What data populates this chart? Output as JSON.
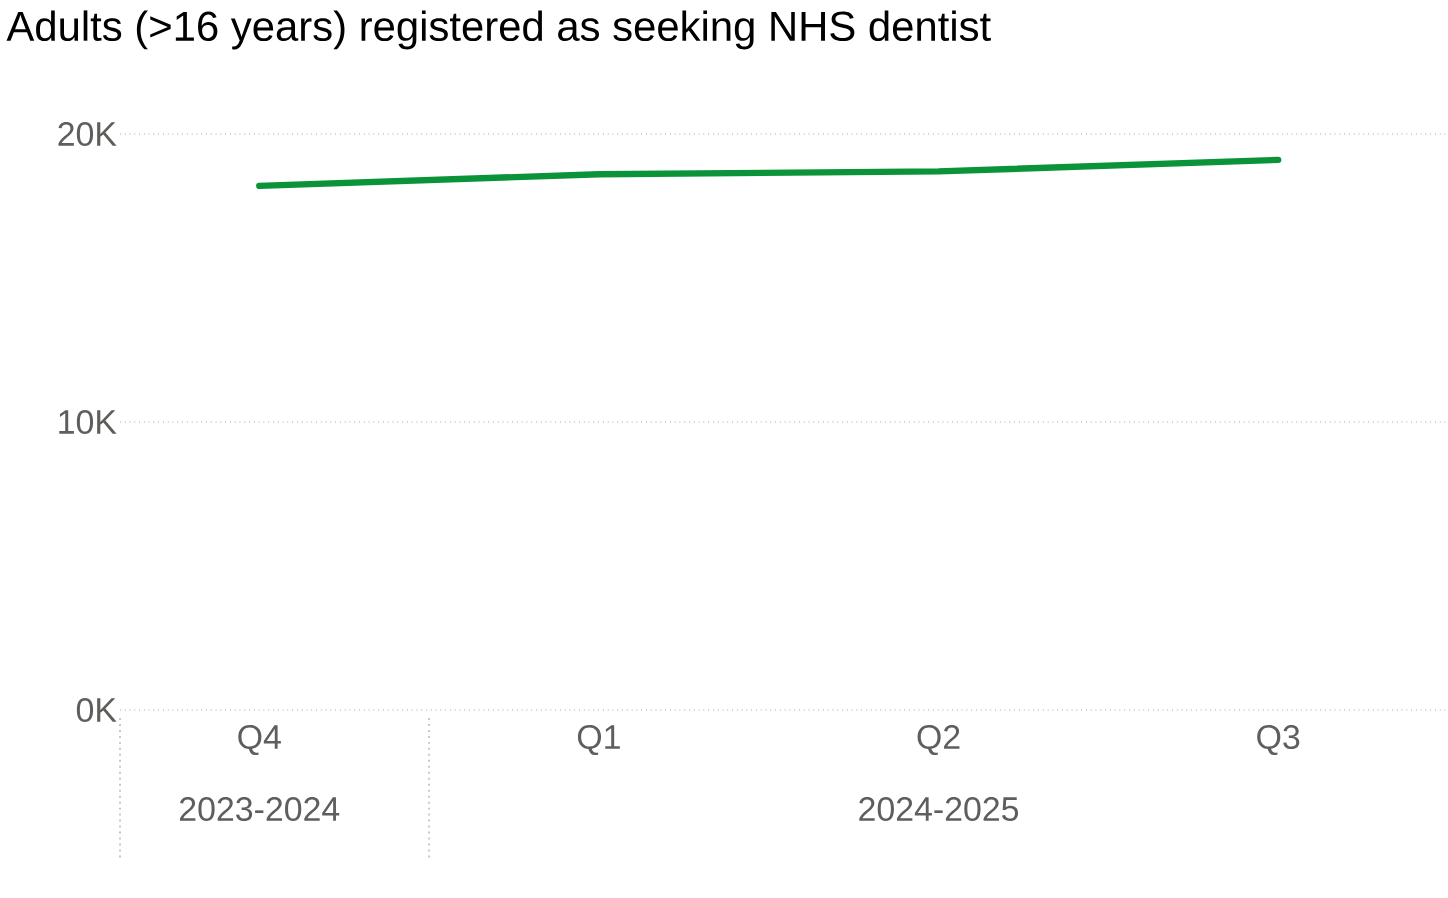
{
  "chart_data": {
    "type": "line",
    "title": "Adults (>16 years) registered as seeking NHS dentist",
    "categories": [
      "Q4",
      "Q1",
      "Q2",
      "Q3"
    ],
    "series": [
      {
        "color": "#0a9339",
        "values": [
          18200,
          18600,
          18700,
          19100
        ]
      }
    ],
    "ylim": [
      0,
      20000
    ],
    "yticks": [
      {
        "value": 0,
        "label": "0K"
      },
      {
        "value": 10000,
        "label": "10K"
      },
      {
        "value": 20000,
        "label": "20K"
      }
    ],
    "grid": "y",
    "annotations": [
      "2023-2024",
      "2024-2025"
    ]
  }
}
